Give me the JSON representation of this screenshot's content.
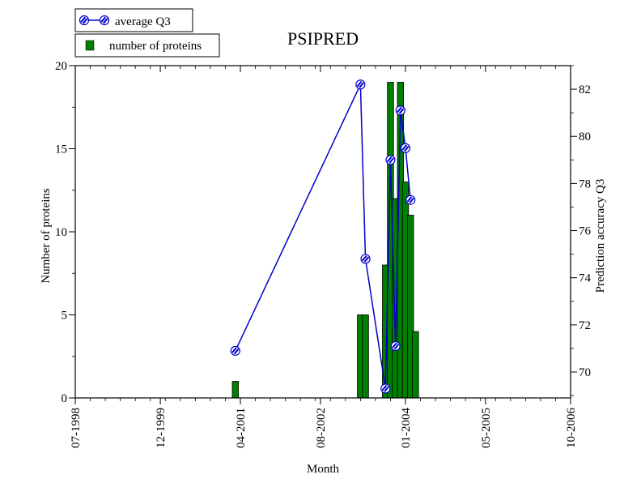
{
  "chart_data": {
    "type": "bar+line",
    "title": "PSIPRED",
    "xlabel": "Month",
    "ylabel_left": "Number of proteins",
    "ylabel_right": "Prediction accuracy Q3",
    "x_ticks": [
      "07-1998",
      "12-1999",
      "04-2001",
      "08-2002",
      "01-2004",
      "05-2005",
      "10-2006"
    ],
    "y_left_ticks": [
      "0",
      "5",
      "10",
      "15",
      "20"
    ],
    "y_right_ticks": [
      "70",
      "72",
      "74",
      "76",
      "78",
      "80",
      "82"
    ],
    "ylim_left": [
      0,
      20
    ],
    "ylim_right": [
      68.9,
      83
    ],
    "xlim_months_from": "07-1998",
    "legend": {
      "placement": "top-left",
      "entries": [
        {
          "label": "average Q3",
          "kind": "line",
          "color": "#0000cc"
        },
        {
          "label": "number of proteins",
          "kind": "bar",
          "color": "#008000"
        }
      ]
    },
    "series": [
      {
        "name": "number of proteins",
        "kind": "bar",
        "color": "#008000",
        "x": [
          "03-2001",
          "04-2003",
          "05-2003",
          "09-2003",
          "10-2003",
          "11-2003",
          "12-2003",
          "01-2004",
          "02-2004",
          "03-2004"
        ],
        "values": [
          1,
          5,
          5,
          8,
          19,
          12,
          19,
          13,
          11,
          4
        ]
      },
      {
        "name": "average Q3",
        "kind": "line",
        "color": "#0000cc",
        "x": [
          "03-2001",
          "04-2003",
          "05-2003",
          "09-2003",
          "10-2003",
          "11-2003",
          "12-2003",
          "01-2004",
          "02-2004"
        ],
        "values": [
          70.9,
          82.2,
          74.8,
          69.3,
          79.0,
          71.1,
          81.1,
          79.5,
          77.3
        ]
      }
    ]
  }
}
